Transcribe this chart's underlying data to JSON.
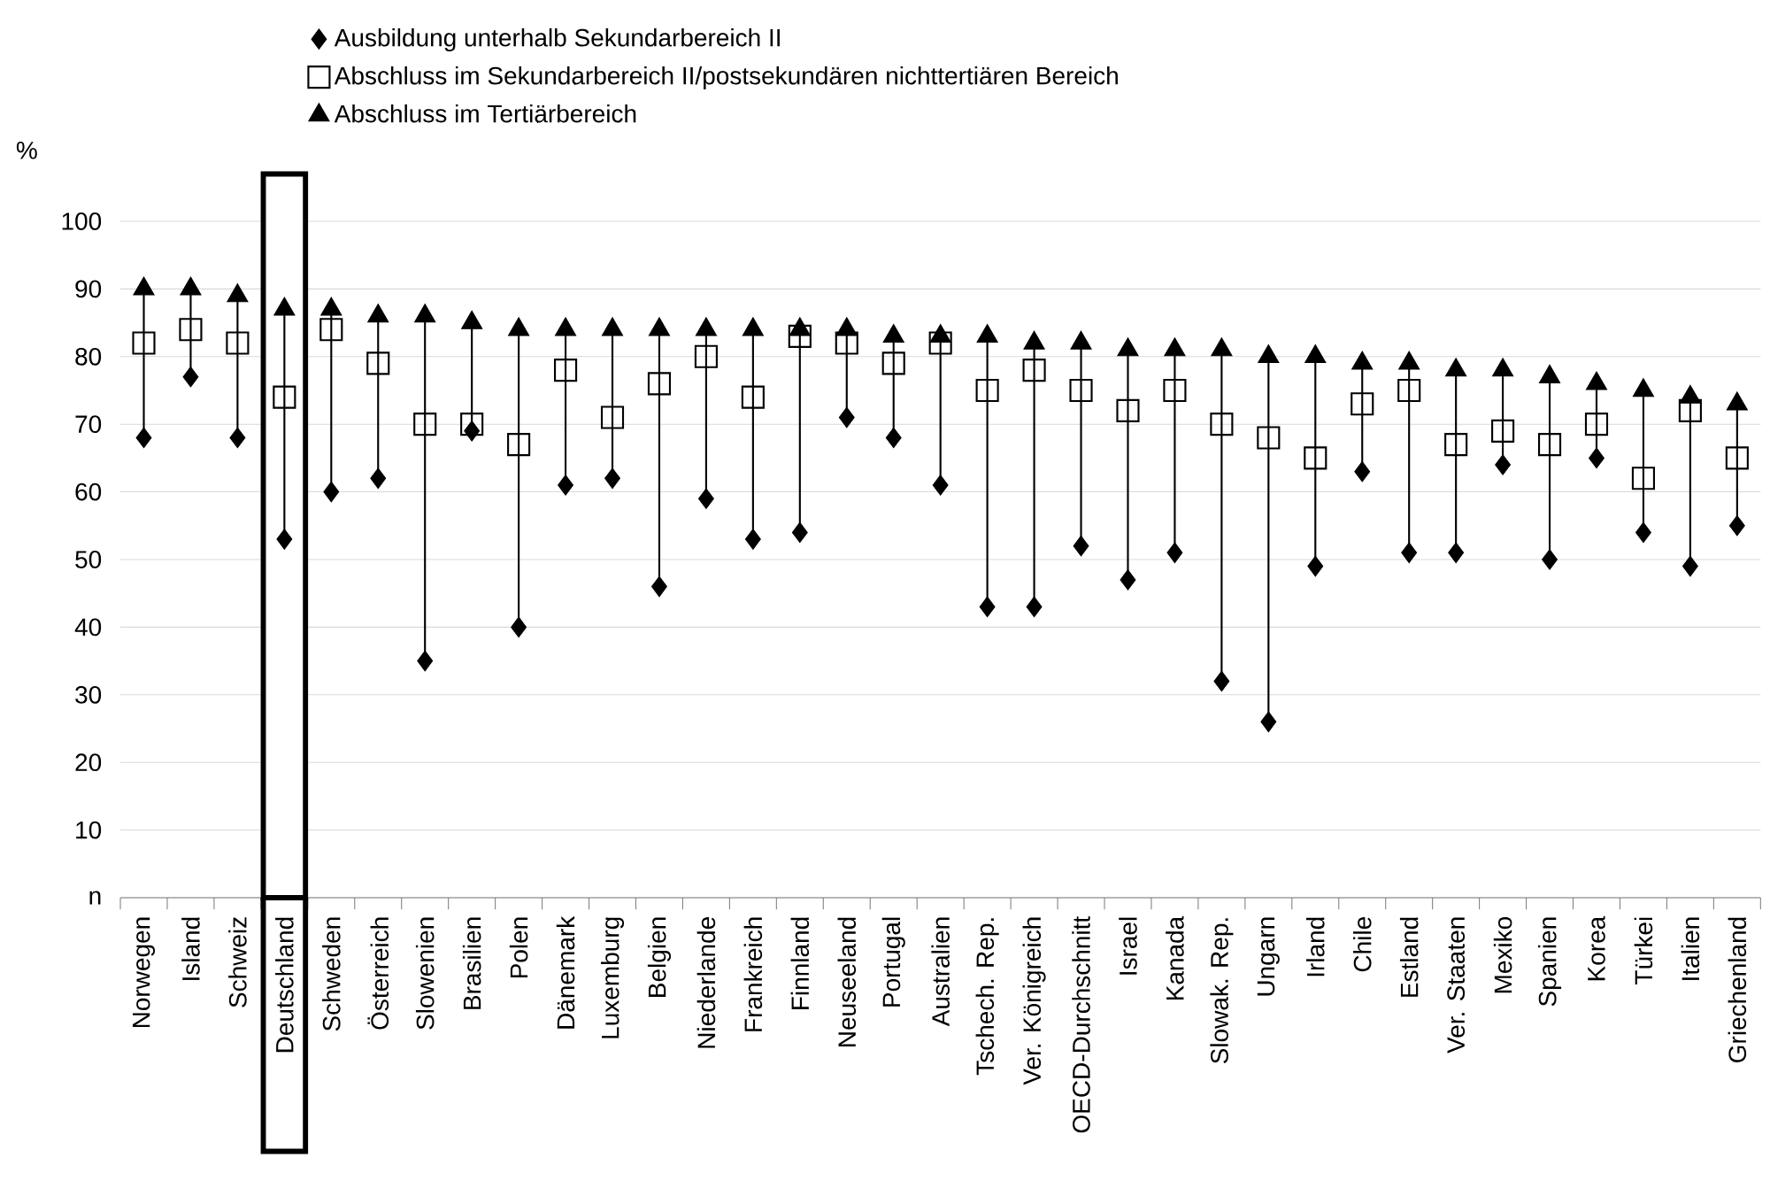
{
  "chart_data": {
    "type": "scatter",
    "ylabel": "%",
    "categories": [
      "Norwegen",
      "Island",
      "Schweiz",
      "Deutschland",
      "Schweden",
      "Österreich",
      "Slowenien",
      "Brasilien",
      "Polen",
      "Dänemark",
      "Luxemburg",
      "Belgien",
      "Niederlande",
      "Frankreich",
      "Finnland",
      "Neuseeland",
      "Portugal",
      "Australien",
      "Tschech. Rep.",
      "Ver. Königreich",
      "OECD-Durchschnitt",
      "Israel",
      "Kanada",
      "Slowak. Rep.",
      "Ungarn",
      "Irland",
      "Chile",
      "Estland",
      "Ver. Staaten",
      "Mexiko",
      "Spanien",
      "Korea",
      "Türkei",
      "Italien",
      "Griechenland"
    ],
    "series": [
      {
        "name": "Ausbildung unterhalb Sekundarbereich II",
        "color": "#000000",
        "marker": "diamond",
        "values": [
          68,
          77,
          68,
          53,
          60,
          62,
          35,
          69,
          40,
          61,
          62,
          46,
          59,
          53,
          54,
          71,
          68,
          61,
          43,
          43,
          52,
          47,
          51,
          32,
          26,
          49,
          63,
          51,
          51,
          64,
          50,
          65,
          54,
          49,
          55
        ]
      },
      {
        "name": "Abschluss im Sekundarbereich II/postsekundären nichttertiären Bereich",
        "color": "#000000",
        "marker": "square",
        "values": [
          82,
          84,
          82,
          74,
          84,
          79,
          70,
          70,
          67,
          78,
          71,
          76,
          80,
          74,
          83,
          82,
          79,
          82,
          75,
          78,
          75,
          72,
          75,
          70,
          68,
          65,
          73,
          75,
          67,
          69,
          67,
          70,
          62,
          72,
          65
        ]
      },
      {
        "name": "Abschluss im Tertiärbereich",
        "color": "#000000",
        "marker": "triangle",
        "values": [
          90,
          90,
          89,
          87,
          87,
          86,
          86,
          85,
          84,
          84,
          84,
          84,
          84,
          84,
          84,
          84,
          83,
          83,
          83,
          82,
          82,
          81,
          81,
          81,
          80,
          80,
          79,
          79,
          78,
          78,
          77,
          76,
          75,
          74,
          73
        ]
      }
    ],
    "ylim": [
      0,
      100
    ],
    "yticks": [
      {
        "value": 0,
        "label": "n"
      },
      10,
      20,
      30,
      40,
      50,
      60,
      70,
      80,
      90,
      100
    ],
    "grid": "y",
    "legend": "top",
    "bands": [
      {
        "axis": "x",
        "from": "Deutschland",
        "to": "Deutschland",
        "color": "#ffffff"
      }
    ]
  }
}
